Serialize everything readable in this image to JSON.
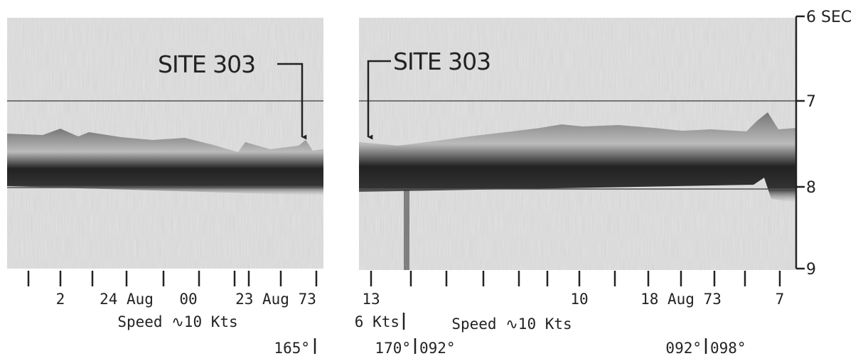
{
  "scale": {
    "top_label": "6 SEC",
    "ticks": [
      "7",
      "8",
      "9"
    ]
  },
  "panels": [
    {
      "site_label": "SITE 303",
      "time_labels": [
        "2",
        "24 Aug",
        "00",
        "23 Aug 73"
      ],
      "speed": "Speed ∿10 Kts",
      "headings": [
        "165°"
      ]
    },
    {
      "site_label": "SITE 303",
      "time_labels": [
        "13",
        "10",
        "18 Aug 73",
        "7"
      ],
      "speed_change": "6 Kts",
      "speed": "Speed ∿10 Kts",
      "headings": [
        "170°",
        "092°",
        "092°",
        "098°"
      ]
    }
  ]
}
